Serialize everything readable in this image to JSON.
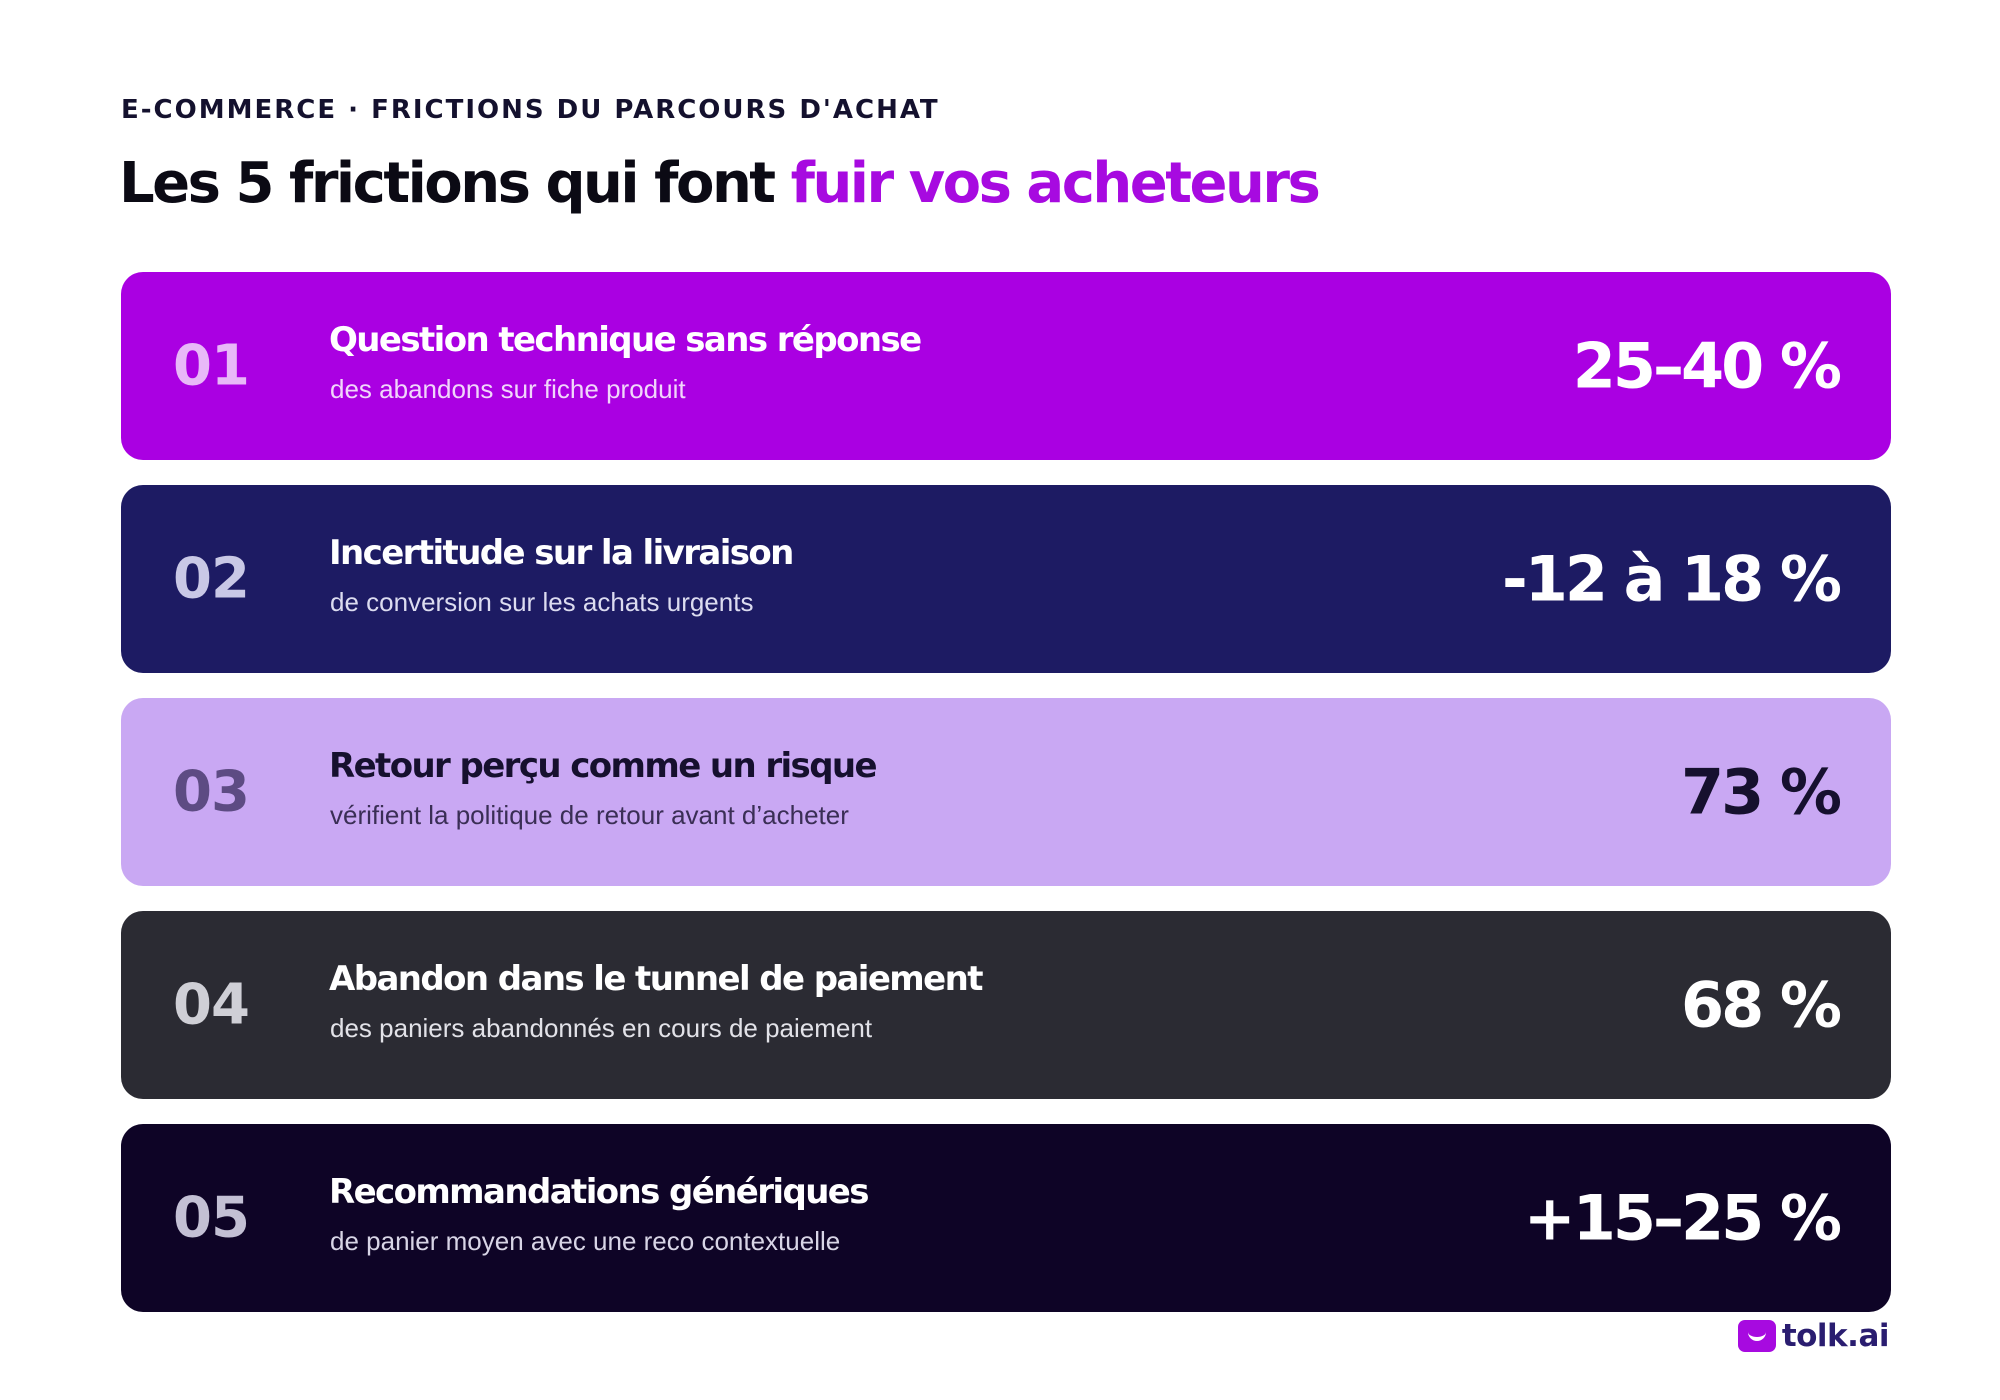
{
  "header": {
    "eyebrow": "E-COMMERCE · FRICTIONS DU PARCOURS D'ACHAT",
    "title_main": "Les 5 frictions qui font ",
    "title_accent": "fuir vos acheteurs"
  },
  "cards": [
    {
      "number": "01",
      "title": "Question technique sans réponse",
      "subtitle": "des abandons sur fiche produit",
      "stat": "25–40 %"
    },
    {
      "number": "02",
      "title": "Incertitude sur la livraison",
      "subtitle": "de conversion sur les achats urgents",
      "stat": "-12 à 18 %"
    },
    {
      "number": "03",
      "title": "Retour perçu comme un risque",
      "subtitle": "vérifient la politique de retour avant d’acheter",
      "stat": "73 %"
    },
    {
      "number": "04",
      "title": "Abandon dans le tunnel de paiement",
      "subtitle": "des paniers abandonnés en cours de paiement",
      "stat": "68 %"
    },
    {
      "number": "05",
      "title": "Recommandations génériques",
      "subtitle": "de panier moyen avec une reco contextuelle",
      "stat": "+15–25 %"
    }
  ],
  "branding": {
    "logo_text": "tolk.ai",
    "logo_icon": "tolk-logo-icon"
  },
  "colors": {
    "accent": "#a70ae0",
    "card_1": "#aa00e2",
    "card_2": "#1d1b63",
    "card_3": "#c9a8f3",
    "card_4": "#2b2b33",
    "card_5": "#0e0426"
  }
}
